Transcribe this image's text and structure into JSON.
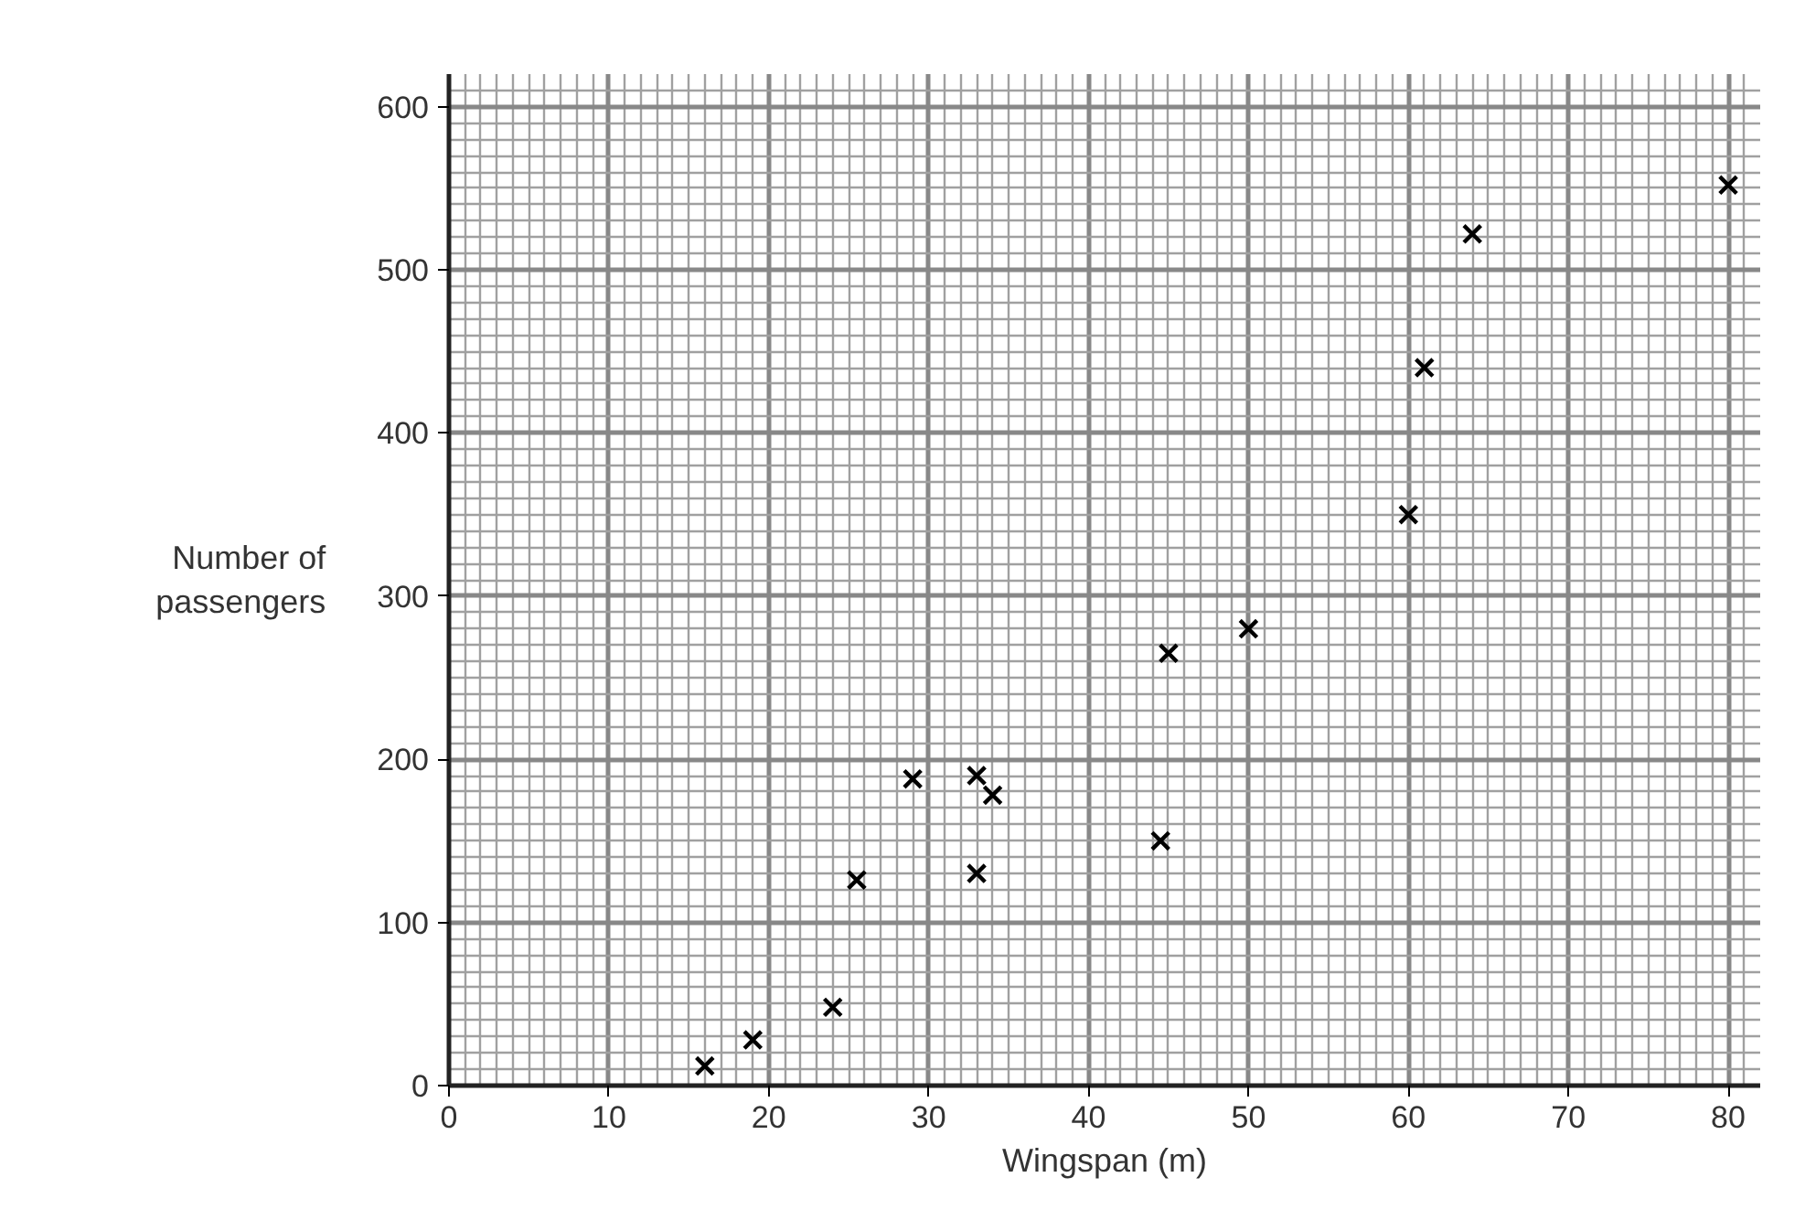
{
  "chart_data": {
    "type": "scatter",
    "xlabel": "Wingspan (m)",
    "ylabel": "Number of\npassengers",
    "x": [
      16,
      19,
      24,
      25.5,
      29,
      33,
      34,
      33,
      44.5,
      45,
      50,
      60,
      61,
      64,
      80
    ],
    "series": [
      {
        "color": "#000000",
        "values": [
          12,
          28,
          48,
          126,
          188,
          190,
          178,
          130,
          150,
          265,
          280,
          350,
          440,
          522,
          552
        ]
      }
    ],
    "xlim": [
      0,
      82
    ],
    "ylim": [
      0,
      620
    ],
    "xticks": [
      0,
      10,
      20,
      30,
      40,
      50,
      60,
      70,
      80
    ],
    "yticks": [
      0,
      100,
      200,
      300,
      400,
      500,
      600
    ],
    "grid": true,
    "marker": "cross"
  }
}
